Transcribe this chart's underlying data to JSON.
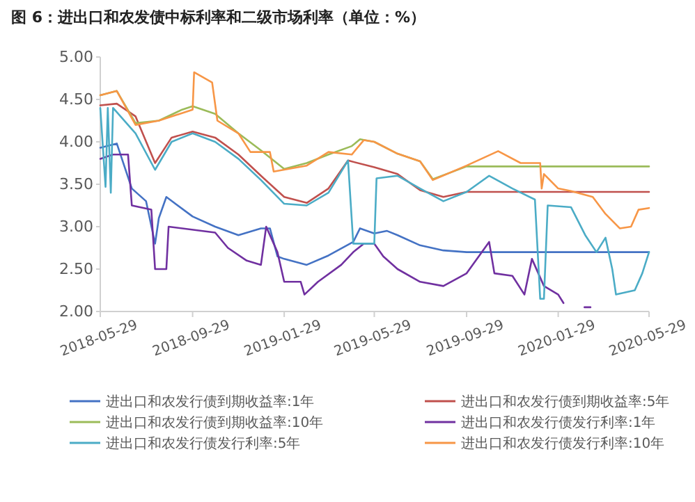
{
  "chart_data": {
    "type": "line",
    "title": "图 6：进出口和农发债中标利率和二级市场利率（单位：%）",
    "xlim": [
      "2018-05-29",
      "2020-05-29"
    ],
    "xticks": [
      "2018-05-29",
      "2018-09-29",
      "2019-01-29",
      "2019-05-29",
      "2019-09-29",
      "2020-01-29",
      "2020-05-29"
    ],
    "ylim": [
      2,
      5
    ],
    "yticks": [
      {
        "value": 2,
        "label": "2.00"
      },
      {
        "value": 2.5,
        "label": "2.50"
      },
      {
        "value": 3,
        "label": "3.00"
      },
      {
        "value": 3.5,
        "label": "3.50"
      },
      {
        "value": 4,
        "label": "4.00"
      },
      {
        "value": 4.5,
        "label": "4.50"
      },
      {
        "value": 5,
        "label": "5.00"
      }
    ],
    "grid": false,
    "legend": "bottom",
    "marker": "none",
    "line_style": "solid",
    "series": [
      {
        "name": "进出口和农发行债到期收益率:1年",
        "color": "#4472c4",
        "x": [
          "2018-05-29",
          "2018-06-20",
          "2018-07-10",
          "2018-07-29",
          "2018-08-10",
          "2018-08-15",
          "2018-08-25",
          "2018-09-29",
          "2018-10-29",
          "2018-11-29",
          "2018-12-29",
          "2019-01-10",
          "2019-01-20",
          "2019-01-29",
          "2019-02-28",
          "2019-03-29",
          "2019-05-01",
          "2019-05-10",
          "2019-05-29",
          "2019-06-15",
          "2019-06-29",
          "2019-07-29",
          "2019-08-29",
          "2019-09-29",
          "2020-05-29"
        ],
        "values": [
          3.93,
          3.98,
          3.45,
          3.3,
          2.8,
          3.1,
          3.35,
          3.12,
          3,
          2.9,
          2.98,
          2.98,
          2.65,
          2.62,
          2.55,
          2.66,
          2.82,
          2.98,
          2.92,
          2.95,
          2.9,
          2.78,
          2.72,
          2.7,
          2.7
        ]
      },
      {
        "name": "进出口和农发行债到期收益率:5年",
        "color": "#c0504d",
        "x": [
          "2018-05-29",
          "2018-06-20",
          "2018-07-15",
          "2018-08-10",
          "2018-09-01",
          "2018-09-29",
          "2018-10-29",
          "2018-11-29",
          "2018-12-29",
          "2019-01-29",
          "2019-02-28",
          "2019-03-29",
          "2019-04-24",
          "2019-05-29",
          "2019-06-29",
          "2019-07-29",
          "2019-08-29",
          "2019-09-29",
          "2020-05-29"
        ],
        "values": [
          4.43,
          4.45,
          4.3,
          3.75,
          4.05,
          4.12,
          4.05,
          3.85,
          3.6,
          3.35,
          3.28,
          3.45,
          3.78,
          3.7,
          3.62,
          3.43,
          3.35,
          3.41,
          3.41
        ]
      },
      {
        "name": "进出口和农发行债到期收益率:10年",
        "color": "#9bbb59",
        "x": [
          "2018-05-29",
          "2018-06-20",
          "2018-07-15",
          "2018-08-15",
          "2018-09-15",
          "2018-09-29",
          "2018-10-29",
          "2018-11-29",
          "2018-12-29",
          "2019-01-29",
          "2019-02-28",
          "2019-03-29",
          "2019-04-29",
          "2019-05-10",
          "2019-05-29",
          "2019-06-29",
          "2019-07-29",
          "2019-08-15",
          "2019-09-29",
          "2020-05-29"
        ],
        "values": [
          4.55,
          4.6,
          4.22,
          4.25,
          4.38,
          4.42,
          4.33,
          4.1,
          3.9,
          3.68,
          3.75,
          3.85,
          3.95,
          4.03,
          4,
          3.86,
          3.77,
          3.56,
          3.71,
          3.71
        ]
      },
      {
        "name": "进出口和农发行债发行利率:1年",
        "color": "#7030a0",
        "x": [
          "2018-05-29",
          "2018-06-15",
          "2018-07-05",
          "2018-07-10",
          "2018-08-05",
          "2018-08-10",
          "2018-08-25",
          "2018-08-28",
          "2018-10-29",
          "2018-11-15",
          "2018-12-10",
          "2018-12-29",
          "2019-01-05",
          "2019-01-20",
          "2019-01-29",
          "2019-02-20",
          "2019-02-25",
          "2019-03-15",
          "2019-04-15",
          "2019-05-01",
          "2019-05-15",
          "2019-05-29",
          "2019-06-10",
          "2019-06-29",
          "2019-07-29",
          "2019-08-29",
          "2019-09-29",
          "2019-10-29",
          "2019-11-05",
          "2019-11-29",
          "2019-12-15",
          "2019-12-25",
          "2020-01-10",
          "2020-01-29",
          "2020-02-05",
          "2020-02-20",
          "2020-03-04",
          "2020-03-12"
        ],
        "values": [
          3.8,
          3.85,
          3.85,
          3.25,
          3.2,
          2.5,
          2.5,
          3,
          2.93,
          2.75,
          2.6,
          2.55,
          3,
          2.7,
          2.35,
          2.35,
          2.2,
          2.35,
          2.55,
          2.7,
          2.8,
          2.8,
          2.65,
          2.5,
          2.35,
          2.3,
          2.45,
          2.82,
          2.45,
          2.42,
          2.2,
          2.62,
          2.3,
          2.2,
          2.1,
          null,
          2.05,
          2.05
        ]
      },
      {
        "name": "进出口和农发行债发行利率:5年",
        "color": "#4bacc6",
        "x": [
          "2018-05-29",
          "2018-06-05",
          "2018-06-08",
          "2018-06-12",
          "2018-06-15",
          "2018-07-15",
          "2018-08-10",
          "2018-09-01",
          "2018-09-29",
          "2018-10-29",
          "2018-11-29",
          "2018-12-29",
          "2019-01-29",
          "2019-02-28",
          "2019-03-29",
          "2019-04-24",
          "2019-05-01",
          "2019-05-29",
          "2019-06-01",
          "2019-06-29",
          "2019-07-29",
          "2019-08-29",
          "2019-09-29",
          "2019-10-29",
          "2019-11-29",
          "2019-12-29",
          "2020-01-05",
          "2020-01-10",
          "2020-01-15",
          "2020-02-15",
          "2020-03-05",
          "2020-03-20",
          "2020-04-01",
          "2020-04-10",
          "2020-04-15",
          "2020-05-10",
          "2020-05-20",
          "2020-05-29"
        ],
        "values": [
          4.4,
          3.47,
          4.4,
          3.4,
          4.4,
          4.1,
          3.67,
          4,
          4.1,
          4,
          3.8,
          3.55,
          3.27,
          3.25,
          3.4,
          3.78,
          2.8,
          2.8,
          3.57,
          3.6,
          3.45,
          3.3,
          3.41,
          3.6,
          3.45,
          3.32,
          2.15,
          2.15,
          3.25,
          3.23,
          2.9,
          2.7,
          2.87,
          2.5,
          2.2,
          2.25,
          2.45,
          2.7
        ]
      },
      {
        "name": "进出口和农发行债发行利率:10年",
        "color": "#f79646",
        "x": [
          "2018-05-29",
          "2018-06-20",
          "2018-07-15",
          "2018-08-15",
          "2018-09-29",
          "2018-10-01",
          "2018-10-25",
          "2018-11-01",
          "2018-11-29",
          "2018-12-15",
          "2019-01-10",
          "2019-01-15",
          "2019-02-28",
          "2019-03-29",
          "2019-04-29",
          "2019-05-15",
          "2019-05-29",
          "2019-06-29",
          "2019-07-29",
          "2019-08-15",
          "2019-09-29",
          "2019-11-10",
          "2019-12-10",
          "2020-01-05",
          "2020-01-07",
          "2020-01-10",
          "2020-01-29",
          "2020-02-15",
          "2020-03-15",
          "2020-04-01",
          "2020-04-20",
          "2020-05-05",
          "2020-05-15",
          "2020-05-29"
        ],
        "values": [
          4.55,
          4.6,
          4.2,
          4.25,
          4.38,
          4.82,
          4.7,
          4.25,
          4.1,
          3.88,
          3.88,
          3.65,
          3.72,
          3.88,
          3.85,
          4.02,
          4,
          3.86,
          3.77,
          3.55,
          3.72,
          3.89,
          3.75,
          3.75,
          3.45,
          3.62,
          3.45,
          3.42,
          3.35,
          3.15,
          2.98,
          3,
          3.2,
          3.22
        ]
      }
    ]
  }
}
